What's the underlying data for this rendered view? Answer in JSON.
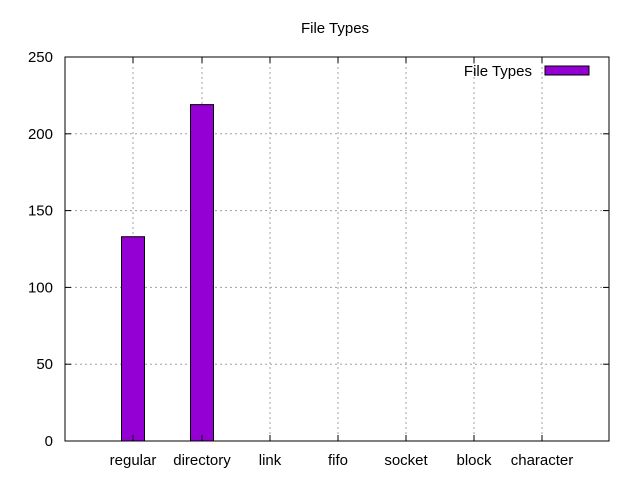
{
  "chart_data": {
    "type": "bar",
    "title": "File Types",
    "xlabel": "",
    "ylabel": "",
    "categories": [
      "regular",
      "directory",
      "link",
      "fifo",
      "socket",
      "block",
      "character"
    ],
    "series": [
      {
        "name": "File Types",
        "values": [
          133,
          219,
          0,
          0,
          0,
          0,
          0
        ],
        "color": "#9400d3"
      }
    ],
    "ylim": [
      0,
      250
    ],
    "yticks": [
      0,
      50,
      100,
      150,
      200,
      250
    ],
    "grid": true,
    "legend_position": "top-right"
  }
}
